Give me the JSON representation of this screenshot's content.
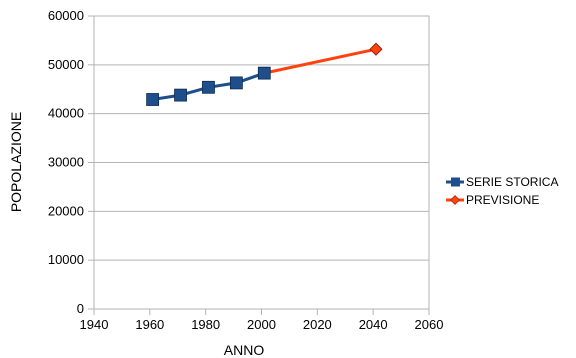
{
  "chart_data": {
    "type": "line",
    "xlabel": "ANNO",
    "ylabel": "POPOLAZIONE",
    "xlim": [
      1940,
      2060
    ],
    "ylim": [
      0,
      60000
    ],
    "x_ticks": [
      1940,
      1960,
      1980,
      2000,
      2020,
      2040,
      2060
    ],
    "y_ticks": [
      0,
      10000,
      20000,
      30000,
      40000,
      50000,
      60000
    ],
    "grid": "horizontal",
    "legend_position": "right",
    "series": [
      {
        "name": "SERIE STORICA",
        "color": "#1f4e8c",
        "marker": "square",
        "points": [
          {
            "x": 1961,
            "y": 42900
          },
          {
            "x": 1971,
            "y": 43800
          },
          {
            "x": 1981,
            "y": 45400
          },
          {
            "x": 1991,
            "y": 46300
          },
          {
            "x": 2001,
            "y": 48300
          }
        ]
      },
      {
        "name": "PREVISIONE",
        "color": "#ff420e",
        "marker": "diamond",
        "points": [
          {
            "x": 2001,
            "y": 48300
          },
          {
            "x": 2041,
            "y": 53200
          }
        ]
      }
    ]
  }
}
